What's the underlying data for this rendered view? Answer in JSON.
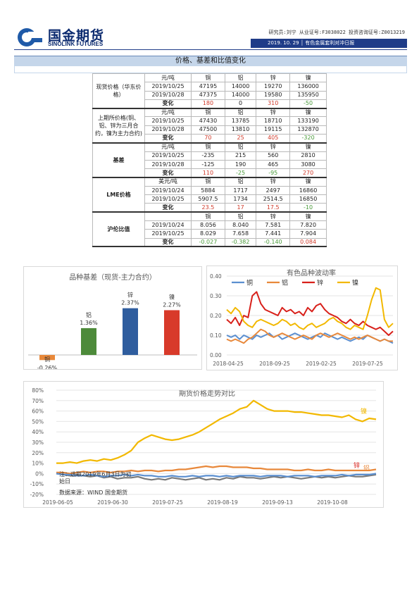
{
  "header": {
    "company_cn": "国金期货",
    "company_en": "SINOLINK FUTURES",
    "analyst": "研究员:刘宁  从业证号:F3038022  投资咨询证号:Z0013219",
    "bar_text": "2019. 10. 29  │  有色金属套利对冲日报"
  },
  "section": {
    "title": "价格、基差和比值变化"
  },
  "table": {
    "groups": [
      {
        "label": "现货价格（华东价格）",
        "bold": false,
        "header": [
          "元/吨",
          "铜",
          "铝",
          "锌",
          "镍"
        ],
        "rows": [
          [
            "2019/10/25",
            "47195",
            "14000",
            "19270",
            "136000"
          ],
          [
            "2019/10/28",
            "47375",
            "14000",
            "19580",
            "135950"
          ]
        ],
        "change": [
          "变化",
          "180",
          "0",
          "310",
          "-50"
        ],
        "change_colors": [
          "",
          "red",
          "",
          "red",
          "green"
        ]
      },
      {
        "label": "上期所价格(铜、铝、锌为三月合约，镍为主力合约)",
        "bold": false,
        "header": [
          "元/吨",
          "铜",
          "铝",
          "锌",
          "镍"
        ],
        "rows": [
          [
            "2019/10/25",
            "47430",
            "13785",
            "18710",
            "133190"
          ],
          [
            "2019/10/28",
            "47500",
            "13810",
            "19115",
            "132870"
          ]
        ],
        "change": [
          "变化",
          "70",
          "25",
          "405",
          "-320"
        ],
        "change_colors": [
          "",
          "red",
          "red",
          "red",
          "green"
        ]
      },
      {
        "label": "基差",
        "bold": true,
        "header": [
          "元/吨",
          "铜",
          "铝",
          "锌",
          "镍"
        ],
        "rows": [
          [
            "2019/10/25",
            "-235",
            "215",
            "560",
            "2810"
          ],
          [
            "2019/10/28",
            "-125",
            "190",
            "465",
            "3080"
          ]
        ],
        "change": [
          "变化",
          "110",
          "-25",
          "-95",
          "270"
        ],
        "change_colors": [
          "",
          "red",
          "green",
          "green",
          "red"
        ]
      },
      {
        "label": "LME价格",
        "bold": true,
        "header": [
          "美元/吨",
          "铜",
          "铝",
          "锌",
          "镍"
        ],
        "rows": [
          [
            "2019/10/24",
            "5884",
            "1717",
            "2497",
            "16860"
          ],
          [
            "2019/10/25",
            "5907.5",
            "1734",
            "2514.5",
            "16850"
          ]
        ],
        "change": [
          "变化",
          "23.5",
          "17",
          "17.5",
          "-10"
        ],
        "change_colors": [
          "",
          "red",
          "red",
          "red",
          "green"
        ]
      },
      {
        "label": "沪伦比值",
        "bold": true,
        "header": [
          "",
          "铜",
          "铝",
          "锌",
          "镍"
        ],
        "rows": [
          [
            "2019/10/24",
            "8.056",
            "8.040",
            "7.581",
            "7.820"
          ],
          [
            "2019/10/25",
            "8.029",
            "7.658",
            "7.441",
            "7.904"
          ]
        ],
        "change": [
          "变化",
          "-0.027",
          "-0.382",
          "-0.140",
          "0.084"
        ],
        "change_colors": [
          "",
          "green",
          "green",
          "green",
          "red"
        ]
      }
    ]
  },
  "chart_data": [
    {
      "type": "bar",
      "title": "品种基差（现货-主力合约）",
      "categories": [
        "铜",
        "铝",
        "锌",
        "镍"
      ],
      "values": [
        -0.26,
        1.36,
        2.37,
        2.27
      ],
      "value_labels": [
        "-0.26%",
        "1.36%",
        "2.37%",
        "2.27%"
      ],
      "colors": [
        "#e8883a",
        "#4d8a3a",
        "#2f5d9e",
        "#d83a2a"
      ]
    },
    {
      "type": "line",
      "title": "有色品种波动率",
      "x_ticks": [
        "2018-04-25",
        "2018-09-25",
        "2019-02-25",
        "2019-07-25"
      ],
      "y_ticks": [
        "0.00",
        "0.10",
        "0.20",
        "0.30",
        "0.40"
      ],
      "ylim": [
        0,
        0.4
      ],
      "legend_position": "top",
      "series": [
        {
          "name": "铜",
          "color": "#5b8fd0",
          "values": [
            0.1,
            0.09,
            0.1,
            0.08,
            0.1,
            0.09,
            0.08,
            0.1,
            0.09,
            0.1,
            0.11,
            0.09,
            0.1,
            0.08,
            0.09,
            0.1,
            0.11,
            0.1,
            0.09,
            0.08,
            0.09,
            0.1,
            0.09,
            0.11,
            0.1,
            0.09,
            0.08,
            0.09,
            0.08,
            0.07,
            0.08,
            0.09,
            0.08,
            0.1,
            0.09,
            0.08,
            0.07,
            0.08,
            0.07,
            0.06
          ]
        },
        {
          "name": "铝",
          "color": "#e8883a",
          "values": [
            0.08,
            0.07,
            0.08,
            0.07,
            0.06,
            0.08,
            0.09,
            0.11,
            0.13,
            0.12,
            0.1,
            0.09,
            0.1,
            0.11,
            0.1,
            0.09,
            0.08,
            0.09,
            0.1,
            0.09,
            0.08,
            0.1,
            0.11,
            0.1,
            0.09,
            0.1,
            0.11,
            0.1,
            0.09,
            0.08,
            0.09,
            0.08,
            0.09,
            0.1,
            0.09,
            0.08,
            0.07,
            0.08,
            0.07,
            0.07
          ]
        },
        {
          "name": "锌",
          "color": "#d8201a",
          "values": [
            0.18,
            0.16,
            0.19,
            0.15,
            0.2,
            0.19,
            0.3,
            0.32,
            0.26,
            0.23,
            0.22,
            0.21,
            0.2,
            0.24,
            0.22,
            0.23,
            0.21,
            0.22,
            0.2,
            0.24,
            0.22,
            0.25,
            0.26,
            0.23,
            0.21,
            0.2,
            0.19,
            0.17,
            0.16,
            0.18,
            0.16,
            0.15,
            0.17,
            0.15,
            0.14,
            0.13,
            0.14,
            0.12,
            0.1,
            0.12
          ]
        },
        {
          "name": "镍",
          "color": "#f2b800",
          "values": [
            0.23,
            0.21,
            0.24,
            0.22,
            0.17,
            0.15,
            0.14,
            0.17,
            0.18,
            0.17,
            0.16,
            0.15,
            0.16,
            0.18,
            0.17,
            0.15,
            0.16,
            0.14,
            0.13,
            0.15,
            0.16,
            0.14,
            0.15,
            0.16,
            0.18,
            0.19,
            0.17,
            0.16,
            0.14,
            0.13,
            0.15,
            0.14,
            0.13,
            0.2,
            0.28,
            0.34,
            0.33,
            0.18,
            0.14,
            0.16
          ]
        }
      ]
    },
    {
      "type": "line",
      "title": "期货价格走势对比",
      "x_ticks": [
        "2019-06-05",
        "2019-06-30",
        "2019-07-25",
        "2019-08-19",
        "2019-09-13",
        "2019-10-08"
      ],
      "y_ticks": [
        "80%",
        "70%",
        "60%",
        "50%",
        "40%",
        "30%",
        "20%",
        "10%",
        "0%",
        "-10%",
        "-20%"
      ],
      "ylim": [
        -20,
        80
      ],
      "note_1": "注：选取2019年6月3日为初始日",
      "note_2": "数据来源：WIND 国金期货",
      "series": [
        {
          "name": "镍",
          "color": "#f2b800",
          "values": [
            10,
            10,
            11,
            10,
            12,
            13,
            12,
            14,
            13,
            15,
            18,
            22,
            30,
            34,
            37,
            35,
            33,
            32,
            33,
            35,
            37,
            40,
            44,
            48,
            52,
            55,
            58,
            62,
            64,
            70,
            66,
            62,
            60,
            60,
            60,
            59,
            59,
            58,
            57,
            56,
            56,
            55,
            54,
            56,
            52,
            50,
            53,
            52
          ]
        },
        {
          "name": "铝",
          "color": "#e8883a",
          "values": [
            1,
            1,
            0,
            1,
            2,
            1,
            2,
            2,
            1,
            2,
            2,
            3,
            2,
            3,
            3,
            2,
            3,
            3,
            4,
            4,
            5,
            6,
            7,
            6,
            7,
            7,
            6,
            6,
            6,
            5,
            5,
            4,
            4,
            4,
            4,
            3,
            3,
            4,
            3,
            3,
            4,
            3,
            3,
            3,
            3,
            3,
            3,
            4
          ]
        },
        {
          "name": "",
          "color": "#7a7a7a",
          "values": [
            0,
            -1,
            -2,
            -1,
            -2,
            -3,
            -2,
            -4,
            -3,
            -5,
            -4,
            -4,
            -3,
            -5,
            -6,
            -5,
            -6,
            -4,
            -5,
            -6,
            -5,
            -4,
            -6,
            -5,
            -6,
            -4,
            -5,
            -3,
            -4,
            -4,
            -5,
            -4,
            -3,
            -4,
            -3,
            -4,
            -5,
            -4,
            -3,
            -4,
            -3,
            -4,
            -3,
            -2,
            -3,
            -3,
            -2,
            -1
          ]
        },
        {
          "name": "",
          "color": "#5b8fd0",
          "values": [
            0,
            -1,
            -1,
            -2,
            -2,
            -1,
            -2,
            -3,
            -2,
            -2,
            -1,
            -2,
            -1,
            -2,
            -2,
            -3,
            -3,
            -2,
            -3,
            -3,
            -2,
            -3,
            -2,
            -2,
            -3,
            -2,
            -3,
            -2,
            -2,
            -2,
            -3,
            -2,
            -2,
            -2,
            -3,
            -2,
            -2,
            -2,
            -3,
            -2,
            -2,
            -2,
            -1,
            -2,
            -1,
            -1,
            -1,
            0
          ]
        }
      ],
      "end_labels": [
        "锌",
        "铝",
        "镍"
      ]
    }
  ]
}
